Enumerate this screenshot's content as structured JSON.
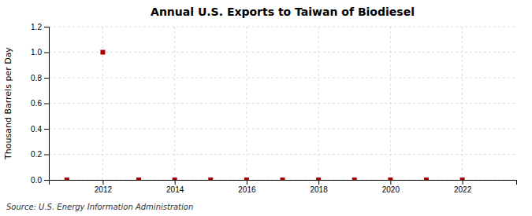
{
  "chart_data": {
    "type": "scatter",
    "title": "Annual U.S. Exports to Taiwan of Biodiesel",
    "y_label": "Thousand Barrels per Day",
    "annotations": [
      "Source: U.S. Energy Information Administration"
    ],
    "x": [
      2011,
      2012,
      2013,
      2014,
      2015,
      2016,
      2017,
      2018,
      2019,
      2020,
      2021,
      2022
    ],
    "values": [
      0.0,
      1.0,
      0.0,
      0.0,
      0.0,
      0.0,
      0.0,
      0.0,
      0.0,
      0.0,
      0.0,
      0.0
    ],
    "color": "#aa0000",
    "marker": "square",
    "xlim": [
      2010.5,
      2023.5
    ],
    "xticks": [
      2012,
      2014,
      2016,
      2018,
      2020,
      2022
    ],
    "ylim": [
      0.0,
      1.2
    ],
    "yticks": [
      {
        "value": 0.0,
        "label": "0.0"
      },
      0.2,
      0.4,
      0.6,
      0.8,
      {
        "value": 1.0,
        "label": "1.0"
      },
      1.2
    ],
    "grid": true
  }
}
